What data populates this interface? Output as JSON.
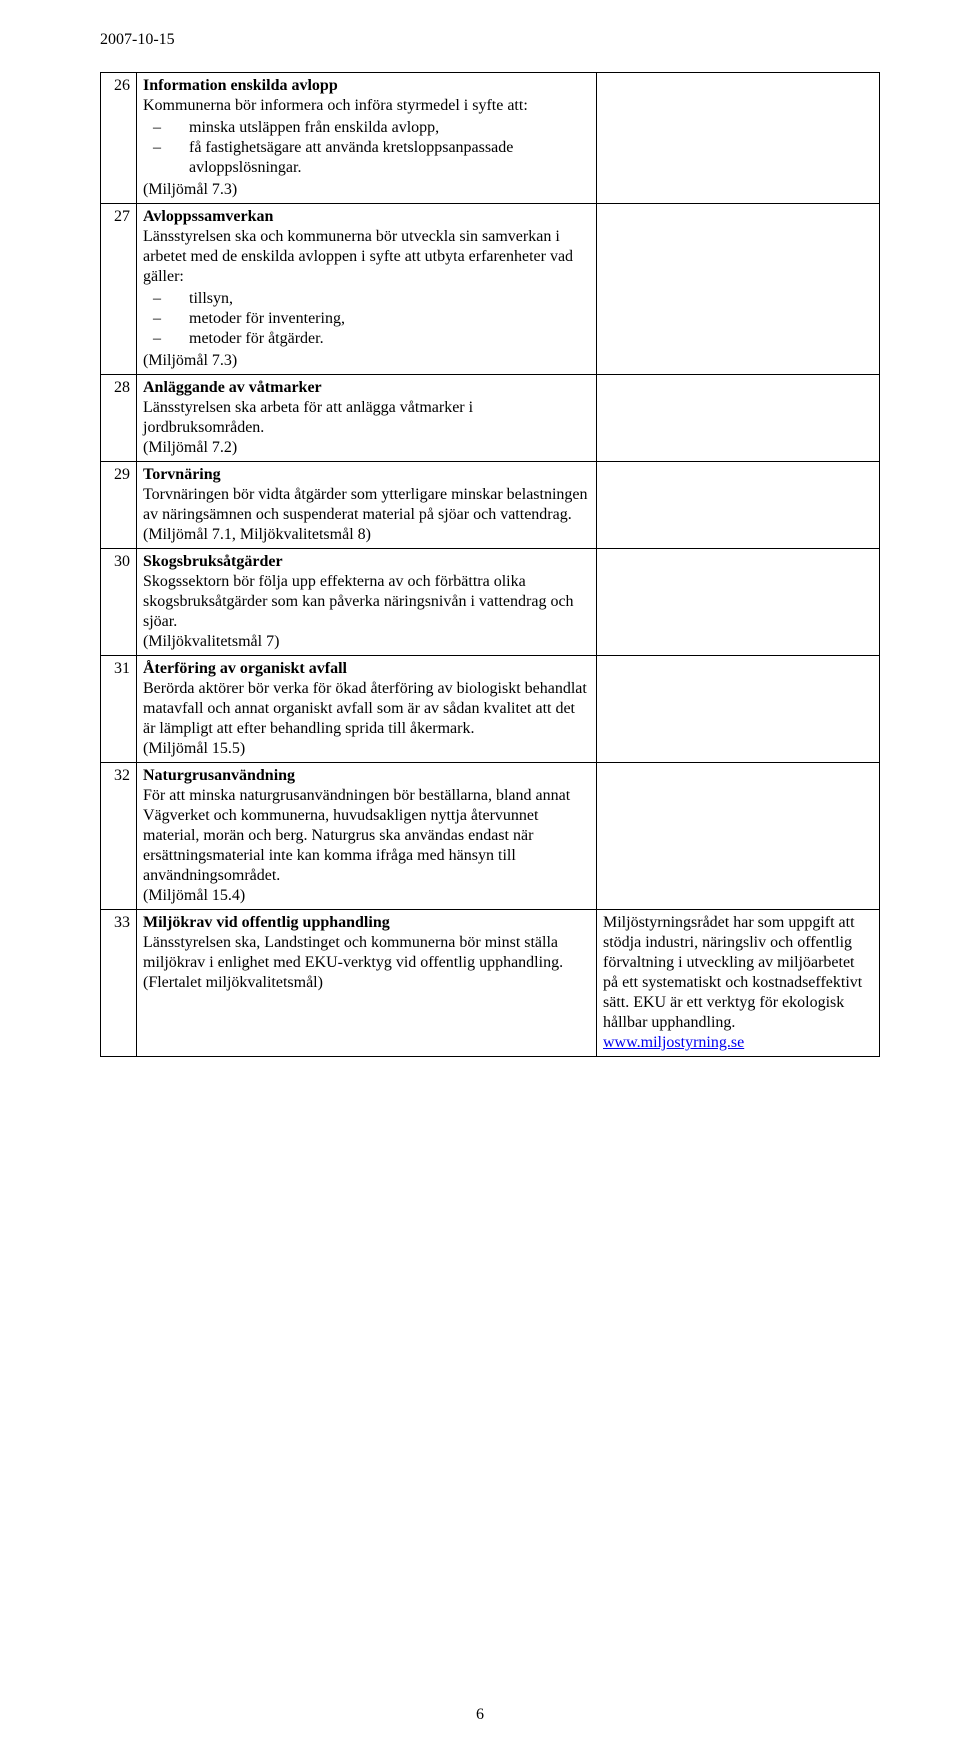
{
  "page": {
    "date": "2007-10-15",
    "number": "6"
  },
  "rows": [
    {
      "num": "26",
      "title": "Information enskilda avlopp",
      "intro": "Kommunerna bör informera och införa styrmedel i syfte att:",
      "bullets": [
        "minska utsläppen från enskilda avlopp,",
        "få fastighetsägare att använda kretsloppsanpassade avloppslösningar."
      ],
      "tail": "(Miljömål 7.3)",
      "side_text": "",
      "side_link_text": "",
      "side_link_href": ""
    },
    {
      "num": "27",
      "title": "Avloppssamverkan",
      "intro": "Länsstyrelsen ska och kommunerna bör utveckla sin samverkan i arbetet med de enskilda avloppen i syfte att utbyta erfarenheter vad gäller:",
      "bullets": [
        "tillsyn,",
        "metoder för inventering,",
        "metoder för åtgärder."
      ],
      "tail": "(Miljömål 7.3)",
      "side_text": "",
      "side_link_text": "",
      "side_link_href": ""
    },
    {
      "num": "28",
      "title": "Anläggande av våtmarker",
      "intro": "Länsstyrelsen ska arbeta för att anlägga våtmarker i jordbruksområden.",
      "bullets": [],
      "tail": "(Miljömål 7.2)",
      "side_text": "",
      "side_link_text": "",
      "side_link_href": ""
    },
    {
      "num": "29",
      "title": "Torvnäring",
      "intro": "Torvnäringen bör vidta åtgärder som ytterligare minskar belastningen av näringsämnen och suspenderat material på sjöar och vattendrag.",
      "bullets": [],
      "tail": "(Miljömål 7.1, Miljökvalitetsmål 8)",
      "side_text": "",
      "side_link_text": "",
      "side_link_href": ""
    },
    {
      "num": "30",
      "title": "Skogsbruksåtgärder",
      "intro": "Skogssektorn bör följa upp effekterna av och förbättra olika skogsbruksåtgärder som kan påverka näringsnivån i vattendrag och sjöar.",
      "bullets": [],
      "tail": "(Miljökvalitetsmål 7)",
      "side_text": "",
      "side_link_text": "",
      "side_link_href": ""
    },
    {
      "num": "31",
      "title": "Återföring av organiskt avfall",
      "intro": "Berörda aktörer bör verka för ökad återföring av biologiskt behandlat matavfall och annat organiskt avfall som är av sådan kvalitet att det är lämpligt att efter behandling sprida till åkermark.",
      "bullets": [],
      "tail": "(Miljömål 15.5)",
      "side_text": "",
      "side_link_text": "",
      "side_link_href": ""
    },
    {
      "num": "32",
      "title": "Naturgrusanvändning",
      "intro": "För att minska naturgrusanvändningen bör beställarna, bland annat Vägverket och kommunerna, huvudsakligen nyttja återvunnet material, morän och berg. Naturgrus ska användas endast när ersättningsmaterial inte kan komma ifråga med hänsyn till användningsområdet.",
      "bullets": [],
      "tail": "(Miljömål 15.4)",
      "side_text": "",
      "side_link_text": "",
      "side_link_href": ""
    },
    {
      "num": "33",
      "title": "Miljökrav vid offentlig upphandling",
      "intro": "Länsstyrelsen ska, Landstinget och kommunerna bör minst ställa miljökrav i enlighet med EKU-verktyg vid offentlig upphandling.",
      "bullets": [],
      "tail": "(Flertalet miljökvalitetsmål)",
      "side_text": "Miljöstyrningsrådet har som uppgift att stödja industri, näringsliv och offentlig förvaltning i utveckling av miljöarbetet på ett systematiskt och kostnadseffektivt sätt. EKU är ett verktyg för ekologisk hållbar upphandling. ",
      "side_link_text": "www.miljostyrning.se",
      "side_link_href": "http://www.miljostyrning.se"
    }
  ]
}
